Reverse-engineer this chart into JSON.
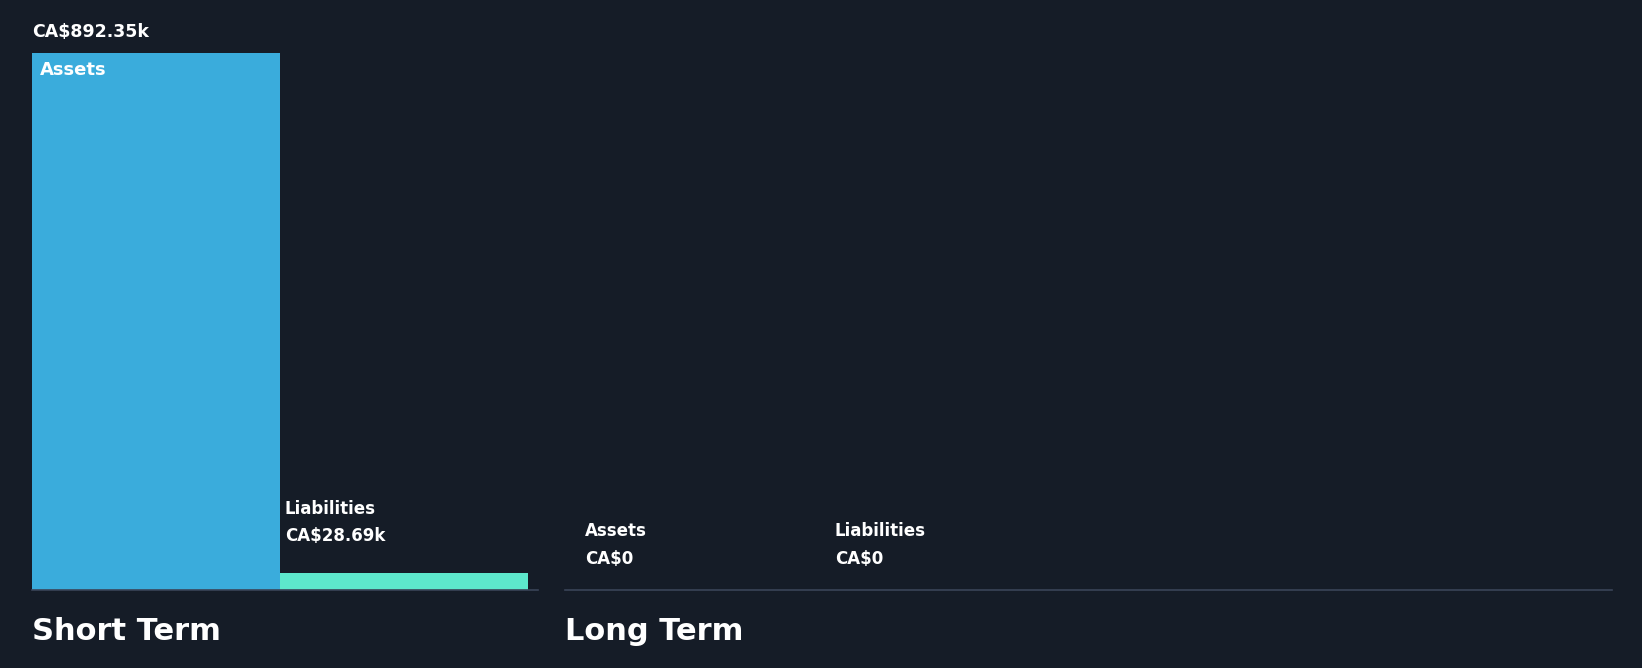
{
  "bg_color": "#151c27",
  "text_color": "#ffffff",
  "asset_color": "#3aacdc",
  "liability_color": "#5de8cc",
  "short_term_asset_value": 892350,
  "short_term_liability_value": 28690,
  "long_term_asset_value": 0,
  "long_term_liability_value": 0,
  "short_term_asset_label": "Assets",
  "short_term_liability_label": "Liabilities",
  "long_term_asset_label": "Assets",
  "long_term_liability_label": "Liabilities",
  "short_term_asset_display": "CA$892.35k",
  "short_term_liability_display": "CA$28.69k",
  "long_term_asset_display": "CA$0",
  "long_term_liability_display": "CA$0",
  "section_short_term": "Short Term",
  "section_long_term": "Long Term"
}
